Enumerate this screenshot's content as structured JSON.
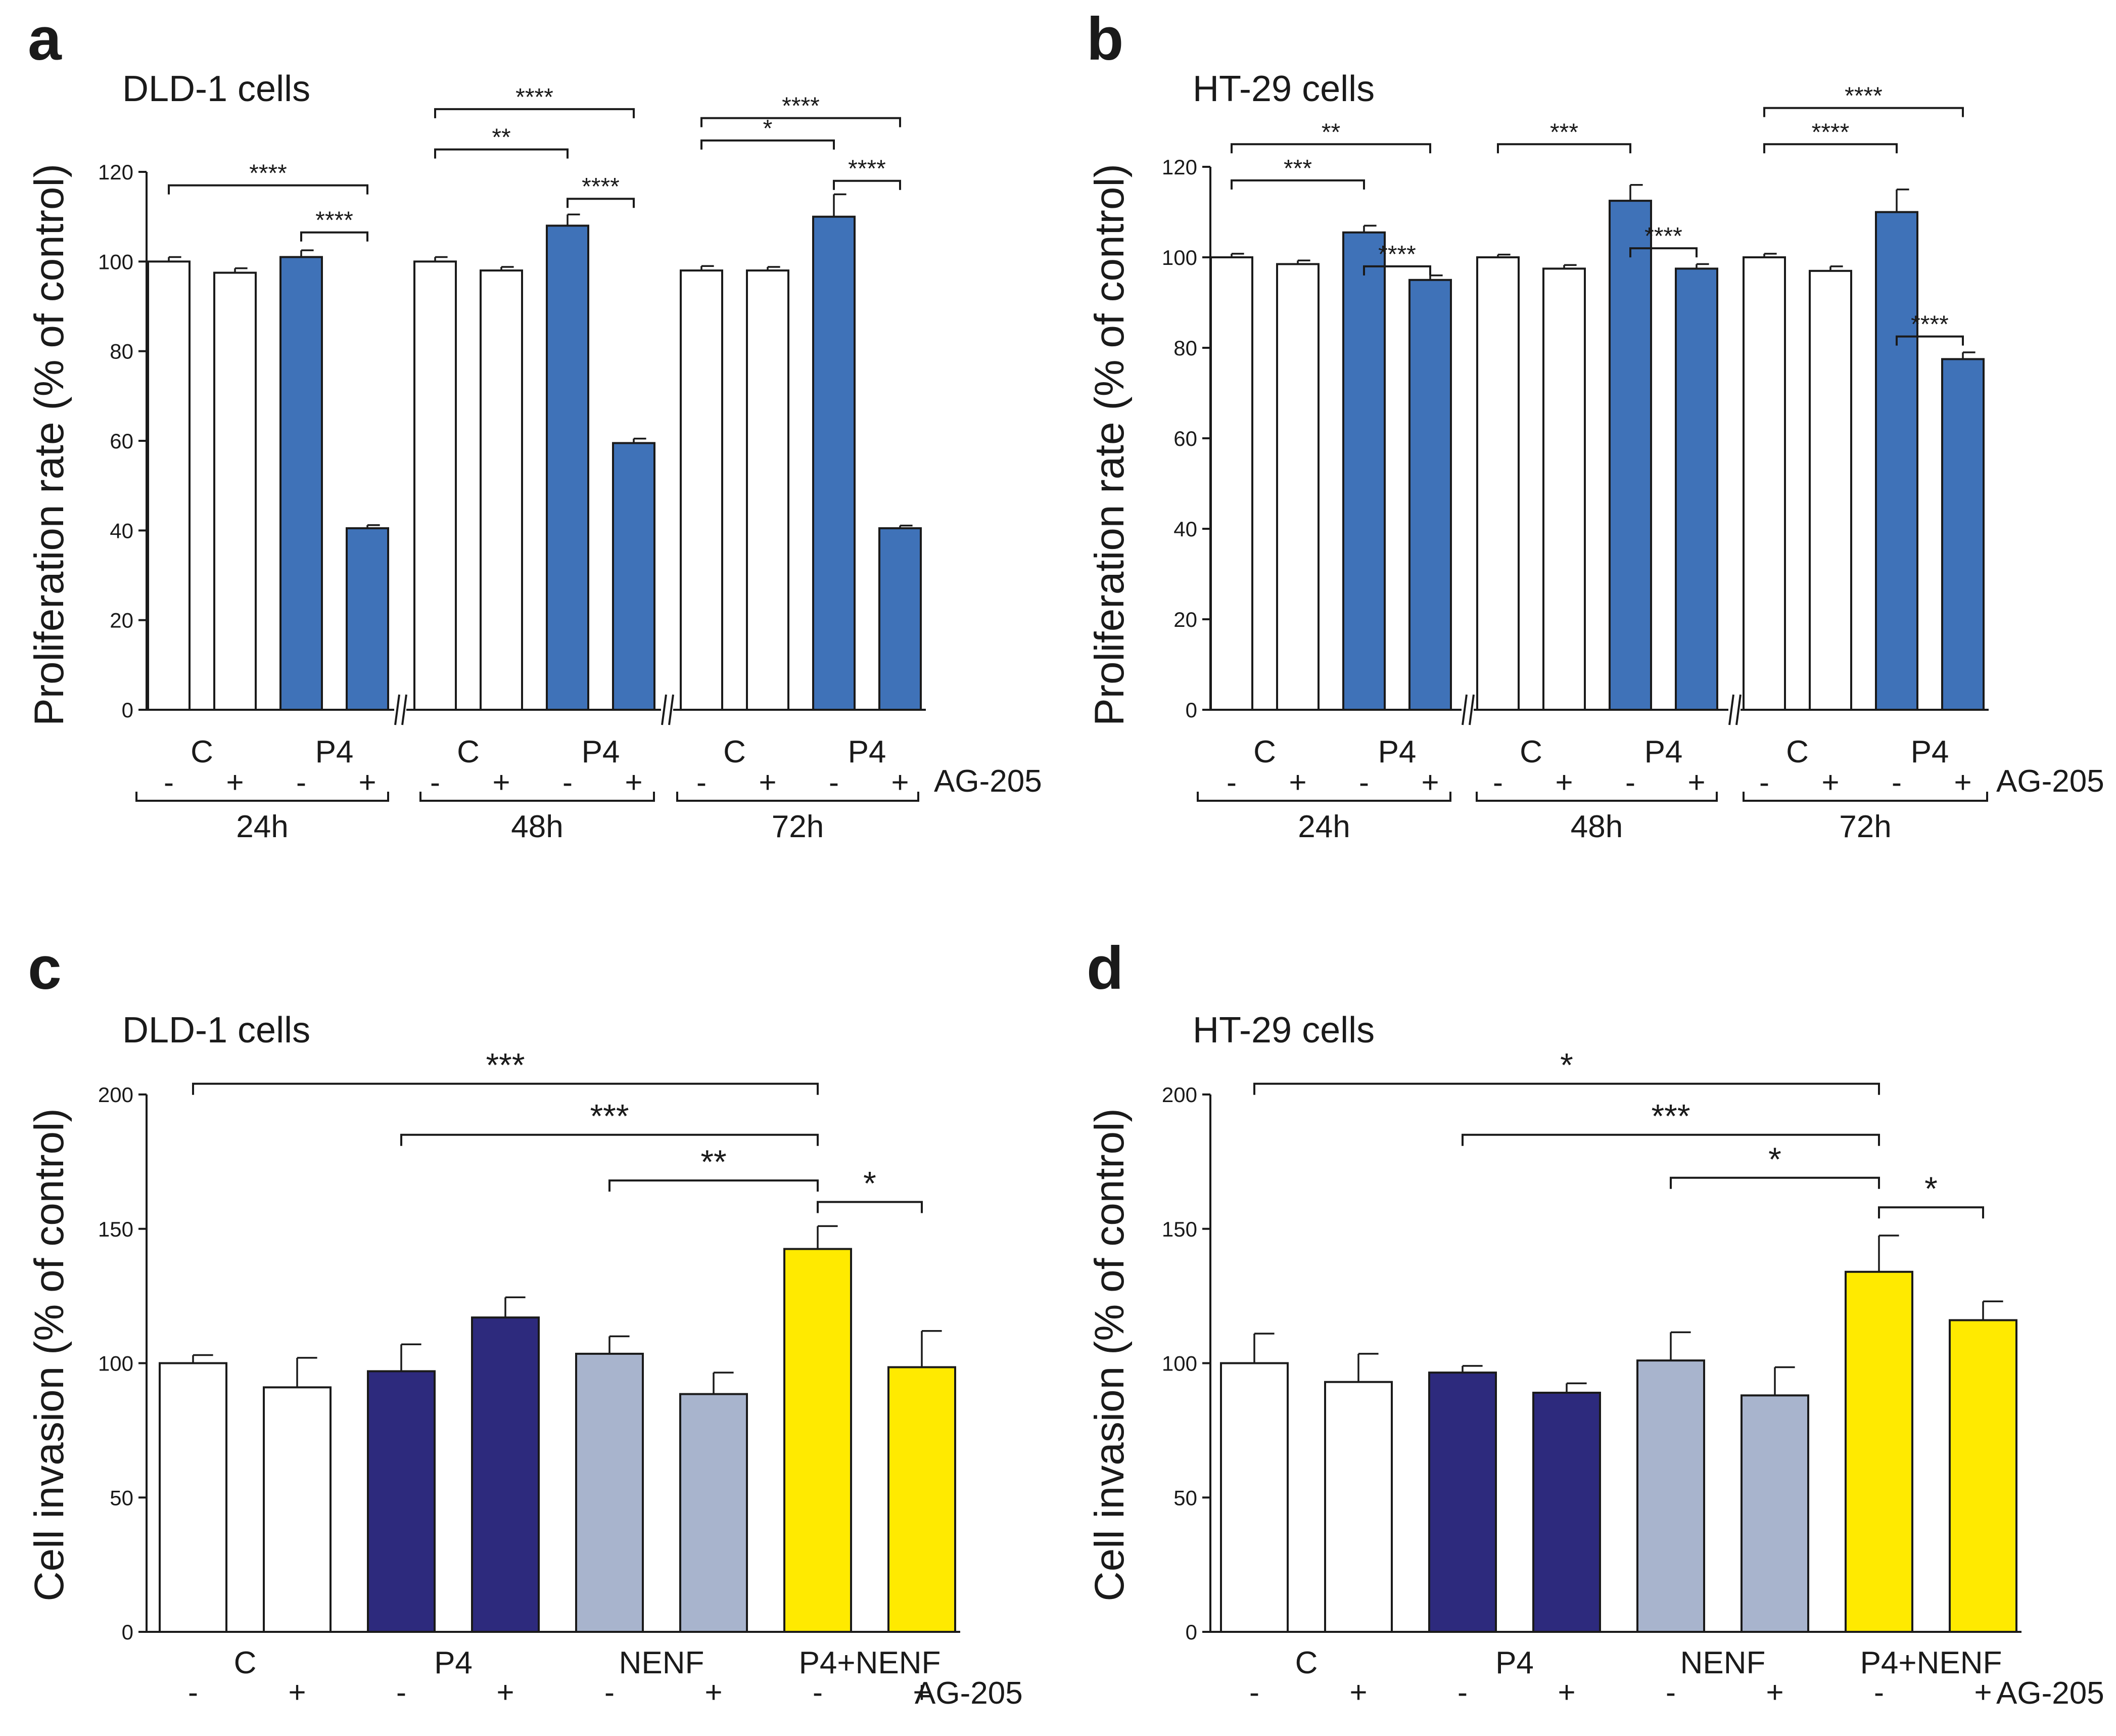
{
  "colors": {
    "control": "#ffffff",
    "p4_blue": "#3f72b8",
    "p4_navy": "#2d2a7d",
    "nenf": "#a8b4cd",
    "p4_nenf": "#ffea00",
    "ink": "#1a1a1a"
  },
  "chart_data": [
    {
      "id": "a",
      "panel_label": "a",
      "type": "bar",
      "title": "DLD-1 cells",
      "ylabel": "Proliferation rate (% of control)",
      "ylim": [
        0,
        120
      ],
      "yticks": [
        "0",
        "20",
        "40",
        "60",
        "80",
        "100",
        "120"
      ],
      "treatment_label": "AG-205",
      "categories": [
        "C -",
        "C +",
        "P4 -",
        "P4 +",
        "C -",
        "C +",
        "P4 -",
        "P4 +",
        "C -",
        "C +",
        "P4 -",
        "P4 +"
      ],
      "values": [
        100,
        97.5,
        101,
        40.5,
        100,
        98,
        108,
        59.5,
        98,
        98,
        110,
        40.5
      ],
      "errors": [
        1,
        1,
        1.5,
        0.7,
        1,
        0.8,
        2.5,
        1,
        1,
        0.8,
        5,
        0.6
      ],
      "bar_colors": [
        "control",
        "control",
        "p4_blue",
        "p4_blue",
        "control",
        "control",
        "p4_blue",
        "p4_blue",
        "control",
        "control",
        "p4_blue",
        "p4_blue"
      ],
      "signs": [
        "-",
        "+",
        "-",
        "+",
        "-",
        "+",
        "-",
        "+",
        "-",
        "+",
        "-",
        "+"
      ],
      "group_labels": [
        {
          "text": "C",
          "from": 0,
          "to": 1
        },
        {
          "text": "P4",
          "from": 2,
          "to": 3
        },
        {
          "text": "C",
          "from": 4,
          "to": 5
        },
        {
          "text": "P4",
          "from": 6,
          "to": 7
        },
        {
          "text": "C",
          "from": 8,
          "to": 9
        },
        {
          "text": "P4",
          "from": 10,
          "to": 11
        }
      ],
      "time_groups": [
        {
          "text": "24h",
          "from": 0,
          "to": 3
        },
        {
          "text": "48h",
          "from": 4,
          "to": 7
        },
        {
          "text": "72h",
          "from": 8,
          "to": 11
        }
      ],
      "annotations": [
        {
          "from": 0,
          "to": 3,
          "y": 117,
          "label": "****"
        },
        {
          "from": 2,
          "to": 3,
          "y": 106.5,
          "label": "****"
        },
        {
          "from": 4,
          "to": 6,
          "y": 125,
          "label": "**"
        },
        {
          "from": 4,
          "to": 7,
          "y": 134,
          "label": "****"
        },
        {
          "from": 6,
          "to": 7,
          "y": 114,
          "label": "****"
        },
        {
          "from": 8,
          "to": 10,
          "y": 127,
          "label": "*"
        },
        {
          "from": 8,
          "to": 11,
          "y": 132,
          "label": "****"
        },
        {
          "from": 10,
          "to": 11,
          "y": 118,
          "label": "****"
        }
      ]
    },
    {
      "id": "b",
      "panel_label": "b",
      "type": "bar",
      "title": "HT-29 cells",
      "ylabel": "Proliferation rate (% of control)",
      "ylim": [
        0,
        120
      ],
      "yticks": [
        "0",
        "20",
        "40",
        "60",
        "80",
        "100",
        "120"
      ],
      "treatment_label": "AG-205",
      "categories": [
        "C -",
        "C +",
        "P4 -",
        "P4 +",
        "C -",
        "C +",
        "P4 -",
        "P4 +",
        "C -",
        "C +",
        "P4 -",
        "P4 +"
      ],
      "values": [
        100,
        98.5,
        105.5,
        95,
        100,
        97.5,
        112.5,
        97.5,
        100,
        97,
        110,
        77.5
      ],
      "errors": [
        0.8,
        0.8,
        1.5,
        1,
        0.6,
        0.8,
        3.5,
        1,
        0.8,
        1,
        5,
        1.5
      ],
      "bar_colors": [
        "control",
        "control",
        "p4_blue",
        "p4_blue",
        "control",
        "control",
        "p4_blue",
        "p4_blue",
        "control",
        "control",
        "p4_blue",
        "p4_blue"
      ],
      "signs": [
        "-",
        "+",
        "-",
        "+",
        "-",
        "+",
        "-",
        "+",
        "-",
        "+",
        "-",
        "+"
      ],
      "group_labels": [
        {
          "text": "C",
          "from": 0,
          "to": 1
        },
        {
          "text": "P4",
          "from": 2,
          "to": 3
        },
        {
          "text": "C",
          "from": 4,
          "to": 5
        },
        {
          "text": "P4",
          "from": 6,
          "to": 7
        },
        {
          "text": "C",
          "from": 8,
          "to": 9
        },
        {
          "text": "P4",
          "from": 10,
          "to": 11
        }
      ],
      "time_groups": [
        {
          "text": "24h",
          "from": 0,
          "to": 3
        },
        {
          "text": "48h",
          "from": 4,
          "to": 7
        },
        {
          "text": "72h",
          "from": 8,
          "to": 11
        }
      ],
      "annotations": [
        {
          "from": 0,
          "to": 2,
          "y": 117,
          "label": "***"
        },
        {
          "from": 0,
          "to": 3,
          "y": 125,
          "label": "**"
        },
        {
          "from": 2,
          "to": 3,
          "y": 98,
          "label": "****"
        },
        {
          "from": 4,
          "to": 6,
          "y": 125,
          "label": "***"
        },
        {
          "from": 6,
          "to": 7,
          "y": 102,
          "label": "****"
        },
        {
          "from": 8,
          "to": 10,
          "y": 125,
          "label": "****"
        },
        {
          "from": 8,
          "to": 11,
          "y": 133,
          "label": "****"
        },
        {
          "from": 10,
          "to": 11,
          "y": 82.5,
          "label": "****"
        }
      ]
    },
    {
      "id": "c",
      "panel_label": "c",
      "type": "bar",
      "title": "DLD-1 cells",
      "ylabel": "Cell invasion (% of control)",
      "ylim": [
        0,
        200
      ],
      "yticks": [
        "0",
        "50",
        "100",
        "150",
        "200"
      ],
      "treatment_label": "AG-205",
      "categories": [
        "C -",
        "C +",
        "P4 -",
        "P4 +",
        "NENF -",
        "NENF +",
        "P4+NENF -",
        "P4+NENF +"
      ],
      "values": [
        100,
        91,
        97,
        117,
        103.5,
        88.5,
        142.5,
        98.5
      ],
      "errors": [
        3,
        11,
        10,
        7.5,
        6.5,
        8,
        8.5,
        13.5
      ],
      "bar_colors": [
        "control",
        "control",
        "p4_navy",
        "p4_navy",
        "nenf",
        "nenf",
        "p4_nenf",
        "p4_nenf"
      ],
      "signs": [
        "-",
        "+",
        "-",
        "+",
        "-",
        "+",
        "-",
        "+"
      ],
      "group_labels": [
        {
          "text": "C",
          "from": 0,
          "to": 1
        },
        {
          "text": "P4",
          "from": 2,
          "to": 3
        },
        {
          "text": "NENF",
          "from": 4,
          "to": 5
        },
        {
          "text": "P4+NENF",
          "from": 6,
          "to": 7
        }
      ],
      "time_groups": [],
      "annotations": [
        {
          "from": 0,
          "to": 6,
          "y": 204,
          "label": "***"
        },
        {
          "from": 2,
          "to": 6,
          "y": 185,
          "label": "***"
        },
        {
          "from": 4,
          "to": 6,
          "y": 168,
          "label": "**"
        },
        {
          "from": 6,
          "to": 7,
          "y": 160,
          "label": "*"
        }
      ]
    },
    {
      "id": "d",
      "panel_label": "d",
      "type": "bar",
      "title": "HT-29 cells",
      "ylabel": "Cell invasion (% of control)",
      "ylim": [
        0,
        200
      ],
      "yticks": [
        "0",
        "50",
        "100",
        "150",
        "200"
      ],
      "treatment_label": "AG-205",
      "categories": [
        "C -",
        "C +",
        "P4 -",
        "P4 +",
        "NENF -",
        "NENF +",
        "P4+NENF -",
        "P4+NENF +"
      ],
      "values": [
        100,
        93,
        96.5,
        89,
        101,
        88,
        134,
        116
      ],
      "errors": [
        11,
        10.5,
        2.5,
        3.5,
        10.5,
        10.5,
        13.5,
        7
      ],
      "bar_colors": [
        "control",
        "control",
        "p4_navy",
        "p4_navy",
        "nenf",
        "nenf",
        "p4_nenf",
        "p4_nenf"
      ],
      "signs": [
        "-",
        "+",
        "-",
        "+",
        "-",
        "+",
        "-",
        "+"
      ],
      "group_labels": [
        {
          "text": "C",
          "from": 0,
          "to": 1
        },
        {
          "text": "P4",
          "from": 2,
          "to": 3
        },
        {
          "text": "NENF",
          "from": 4,
          "to": 5
        },
        {
          "text": "P4+NENF",
          "from": 6,
          "to": 7
        }
      ],
      "time_groups": [],
      "annotations": [
        {
          "from": 0,
          "to": 6,
          "y": 204,
          "label": "*"
        },
        {
          "from": 2,
          "to": 6,
          "y": 185,
          "label": "***"
        },
        {
          "from": 4,
          "to": 6,
          "y": 169,
          "label": "*"
        },
        {
          "from": 6,
          "to": 7,
          "y": 158,
          "label": "*"
        }
      ]
    }
  ]
}
